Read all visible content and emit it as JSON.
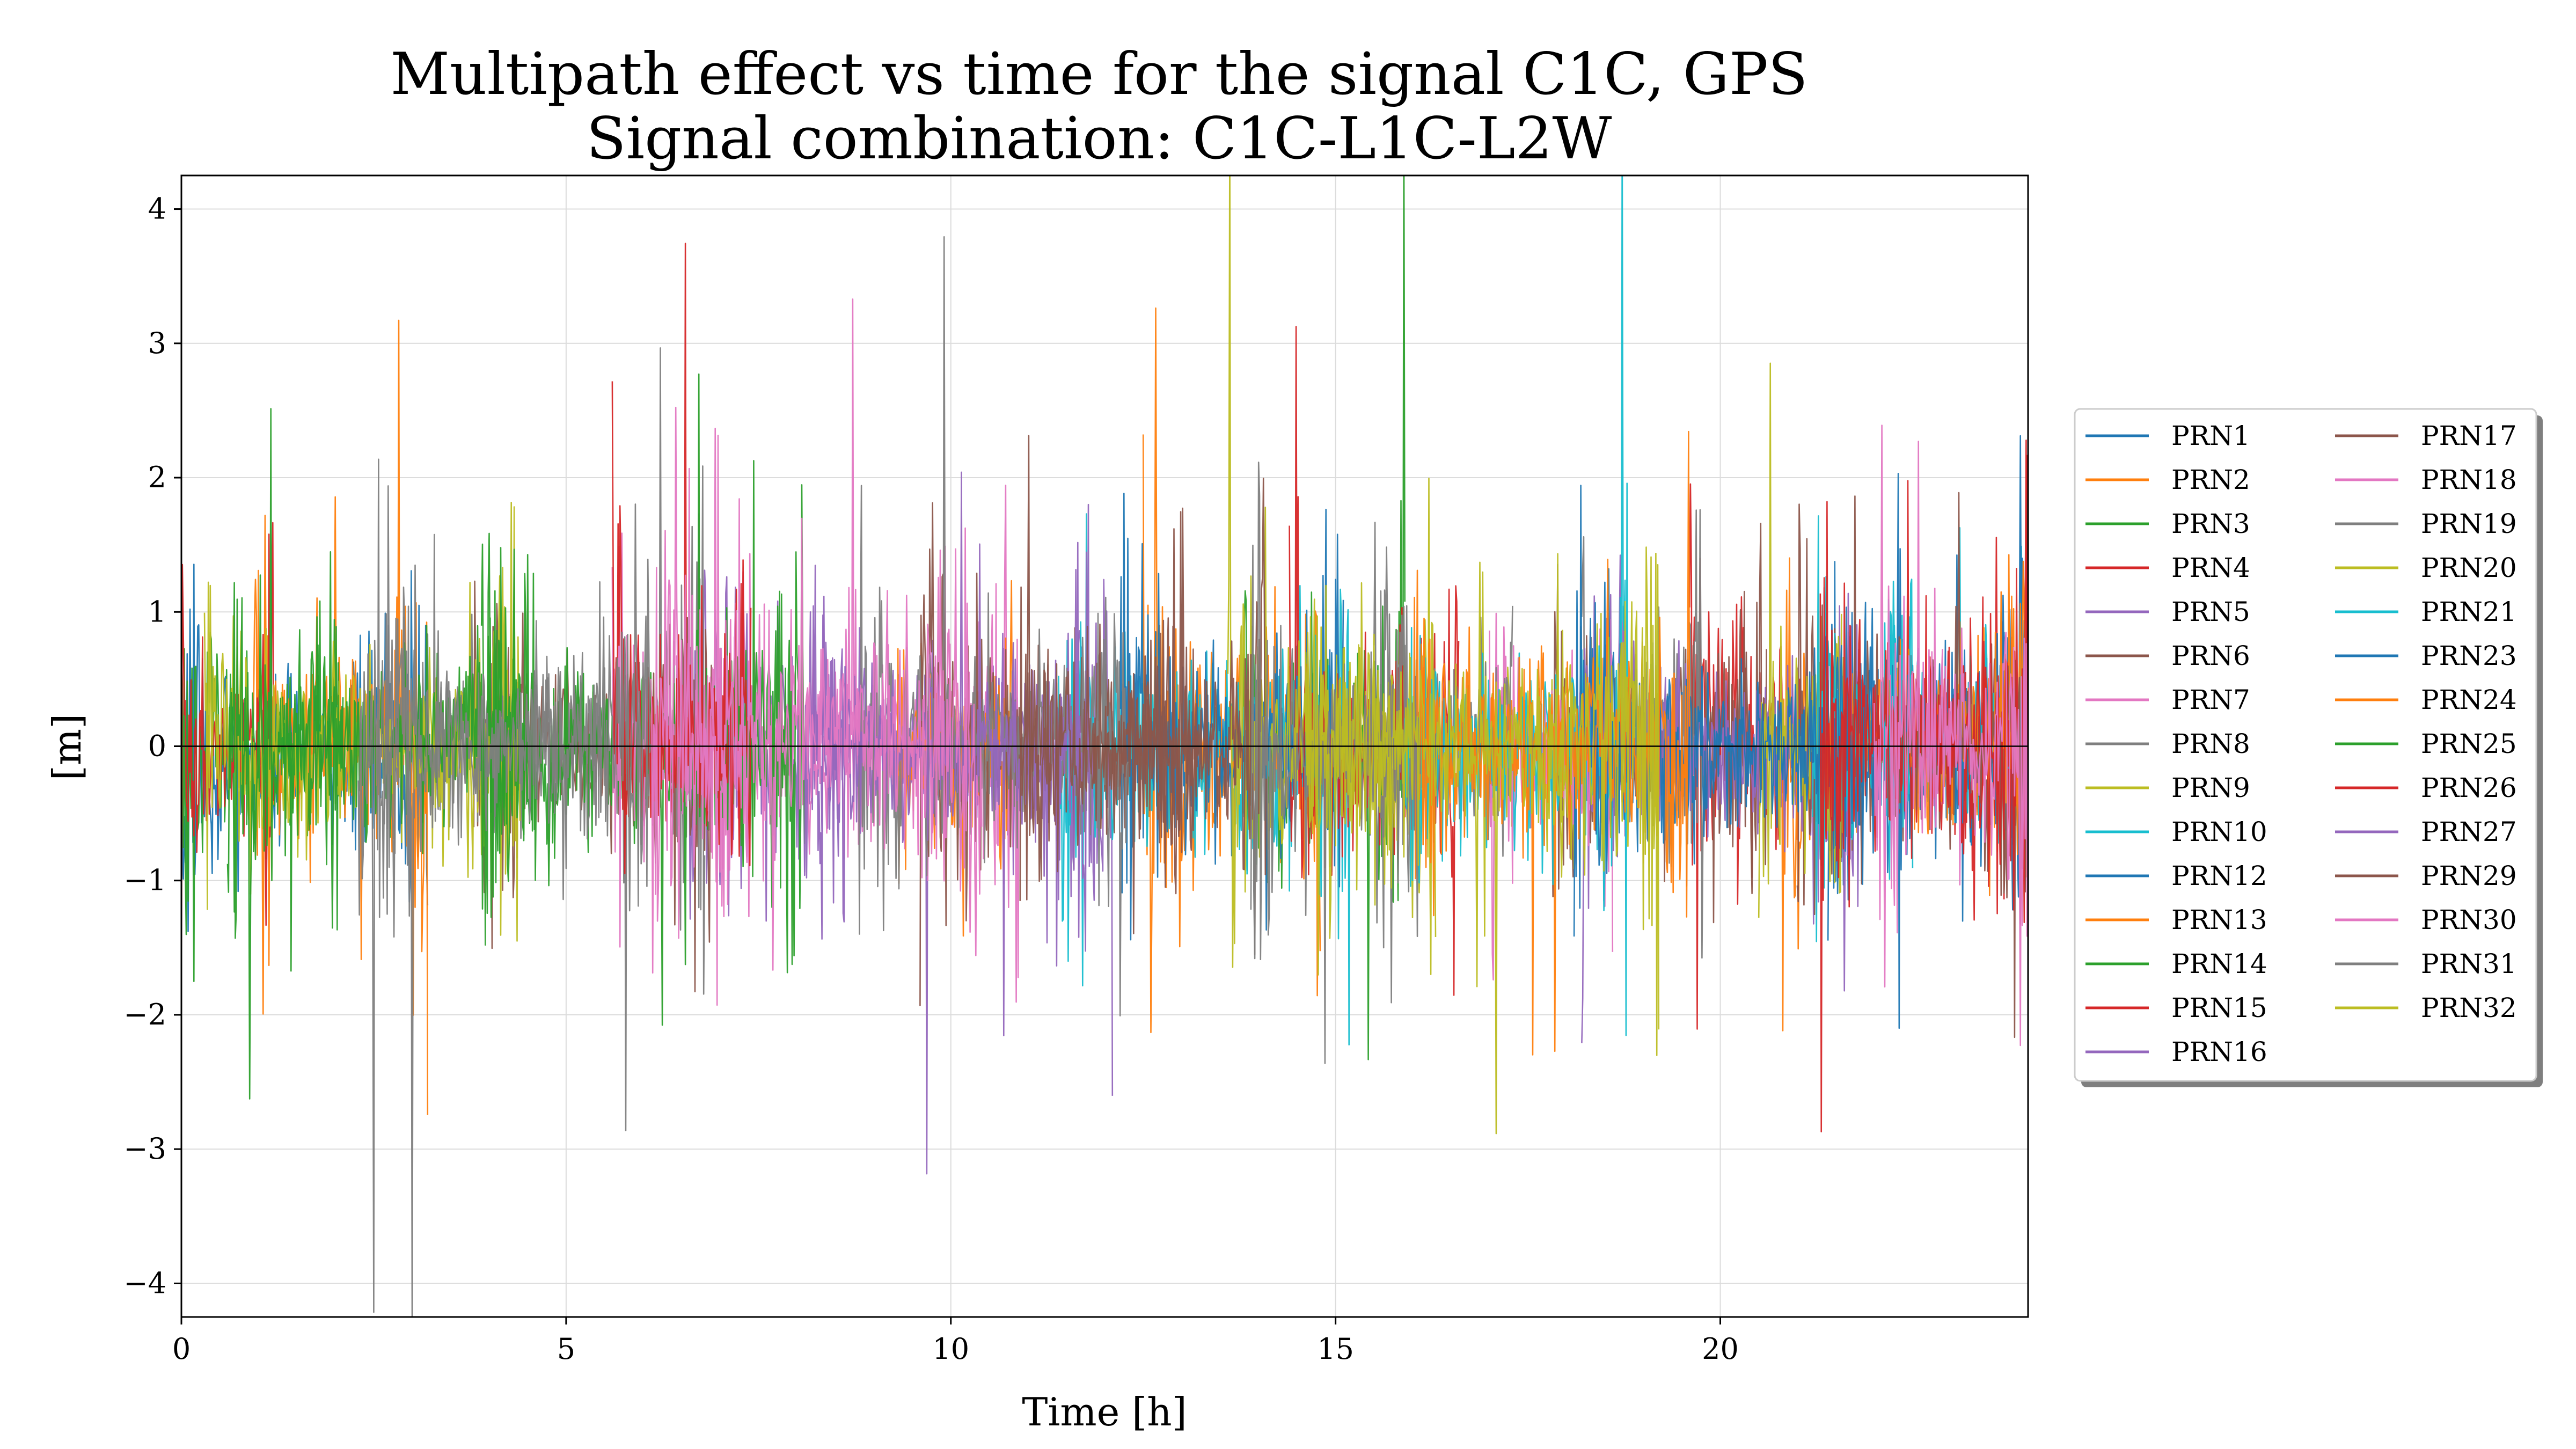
{
  "chart_data": {
    "type": "line",
    "title": "Multipath effect vs time for the signal C1C, GPS",
    "subtitle": "Signal combination: C1C-L1C-L2W",
    "xlabel": "Time [h]",
    "ylabel": "[m]",
    "xlim": [
      0,
      24
    ],
    "ylim": [
      -4.25,
      4.25
    ],
    "xticks": [
      0,
      5,
      10,
      15,
      20
    ],
    "xtick_labels": [
      "0",
      "5",
      "10",
      "15",
      "20"
    ],
    "yticks": [
      -4,
      -3,
      -2,
      -1,
      0,
      1,
      2,
      3,
      4
    ],
    "ytick_labels": [
      "−4",
      "−3",
      "−2",
      "−1",
      "0",
      "1",
      "2",
      "3",
      "4"
    ],
    "grid": true,
    "zero_line": true,
    "legend_position": "right",
    "legend_columns": 2,
    "series": [
      {
        "name": "PRN1",
        "color": "#1f77b4",
        "passes": [
          [
            0.0,
            3.2
          ],
          [
            22.3,
            24.0
          ]
        ],
        "amp": 0.3
      },
      {
        "name": "PRN2",
        "color": "#ff7f0e",
        "passes": [
          [
            0.9,
            3.2
          ],
          [
            12.5,
            14.8
          ]
        ],
        "amp": 0.35
      },
      {
        "name": "PRN3",
        "color": "#2ca02c",
        "passes": [
          [
            0.0,
            2.1
          ],
          [
            13.8,
            15.9
          ]
        ],
        "amp": 0.3
      },
      {
        "name": "PRN4",
        "color": "#d62728",
        "passes": [
          [
            0.0,
            1.2
          ],
          [
            19.6,
            24.0
          ]
        ],
        "amp": 0.3
      },
      {
        "name": "PRN5",
        "color": "#9467bd",
        "passes": [
          [
            6.6,
            12.1
          ]
        ],
        "amp": 0.3
      },
      {
        "name": "PRN6",
        "color": "#8c564b",
        "passes": [
          [
            3.8,
            6.9
          ],
          [
            17.8,
            20.6
          ]
        ],
        "amp": 0.3
      },
      {
        "name": "PRN7",
        "color": "#e377c2",
        "passes": [
          [
            6.9,
            10.9
          ]
        ],
        "amp": 0.35
      },
      {
        "name": "PRN8",
        "color": "#7f7f7f",
        "passes": [
          [
            2.6,
            6.8
          ],
          [
            18.2,
            19.8
          ]
        ],
        "amp": 0.3
      },
      {
        "name": "PRN9",
        "color": "#bcbd22",
        "passes": [
          [
            0.3,
            4.4
          ],
          [
            16.9,
            18.1
          ]
        ],
        "amp": 0.3
      },
      {
        "name": "PRN10",
        "color": "#17becf",
        "passes": [
          [
            11.4,
            15.2
          ],
          [
            22.1,
            24.0
          ]
        ],
        "amp": 0.3
      },
      {
        "name": "PRN12",
        "color": "#1f77b4",
        "passes": [
          [
            12.2,
            15.1
          ],
          [
            21.4,
            24.0
          ]
        ],
        "amp": 0.3
      },
      {
        "name": "PRN13",
        "color": "#ff7f0e",
        "passes": [
          [
            9.3,
            10.8
          ],
          [
            20.8,
            24.0
          ]
        ],
        "amp": 0.3
      },
      {
        "name": "PRN14",
        "color": "#2ca02c",
        "passes": [
          [
            3.9,
            8.1
          ]
        ],
        "amp": 0.35
      },
      {
        "name": "PRN15",
        "color": "#d62728",
        "passes": [
          [
            14.4,
            16.6
          ]
        ],
        "amp": 0.35
      },
      {
        "name": "PRN16",
        "color": "#9467bd",
        "passes": [
          [
            18.2,
            21.8
          ]
        ],
        "amp": 0.3
      },
      {
        "name": "PRN17",
        "color": "#8c564b",
        "passes": [
          [
            9.6,
            13.2
          ],
          [
            21.0,
            24.0
          ]
        ],
        "amp": 0.3
      },
      {
        "name": "PRN18",
        "color": "#e377c2",
        "passes": [
          [
            5.6,
            7.2
          ],
          [
            17.0,
            18.6
          ]
        ],
        "amp": 0.3
      },
      {
        "name": "PRN19",
        "color": "#7f7f7f",
        "passes": [
          [
            8.8,
            12.3
          ],
          [
            15.5,
            17.3
          ]
        ],
        "amp": 0.3
      },
      {
        "name": "PRN20",
        "color": "#bcbd22",
        "passes": [
          [
            13.6,
            16.3
          ],
          [
            20.5,
            21.6
          ]
        ],
        "amp": 0.3
      },
      {
        "name": "PRN21",
        "color": "#17becf",
        "passes": [
          [
            15.9,
            18.8
          ],
          [
            21.2,
            22.5
          ]
        ],
        "amp": 0.3
      },
      {
        "name": "PRN23",
        "color": "#1f77b4",
        "passes": [
          [
            18.1,
            22.0
          ]
        ],
        "amp": 0.3
      },
      {
        "name": "PRN24",
        "color": "#ff7f0e",
        "passes": [
          [
            16.0,
            19.6
          ]
        ],
        "amp": 0.3
      },
      {
        "name": "PRN25",
        "color": "#2ca02c",
        "passes": [
          [
            0.6,
            4.6
          ]
        ],
        "amp": 0.3
      },
      {
        "name": "PRN26",
        "color": "#d62728",
        "passes": [
          [
            5.6,
            7.4
          ],
          [
            21.3,
            24.0
          ]
        ],
        "amp": 0.35
      },
      {
        "name": "PRN27",
        "color": "#9467bd",
        "passes": [
          [
            8.1,
            11.8
          ]
        ],
        "amp": 0.3
      },
      {
        "name": "PRN29",
        "color": "#8c564b",
        "passes": [
          [
            10.9,
            14.1
          ]
        ],
        "amp": 0.3
      },
      {
        "name": "PRN30",
        "color": "#e377c2",
        "passes": [
          [
            6.1,
            10.4
          ],
          [
            22.0,
            24.0
          ]
        ],
        "amp": 0.35
      },
      {
        "name": "PRN31",
        "color": "#7f7f7f",
        "passes": [
          [
            2.3,
            6.1
          ],
          [
            13.9,
            16.1
          ]
        ],
        "amp": 0.3
      },
      {
        "name": "PRN32",
        "color": "#bcbd22",
        "passes": [
          [
            14.6,
            19.2
          ]
        ],
        "amp": 0.3
      }
    ]
  }
}
